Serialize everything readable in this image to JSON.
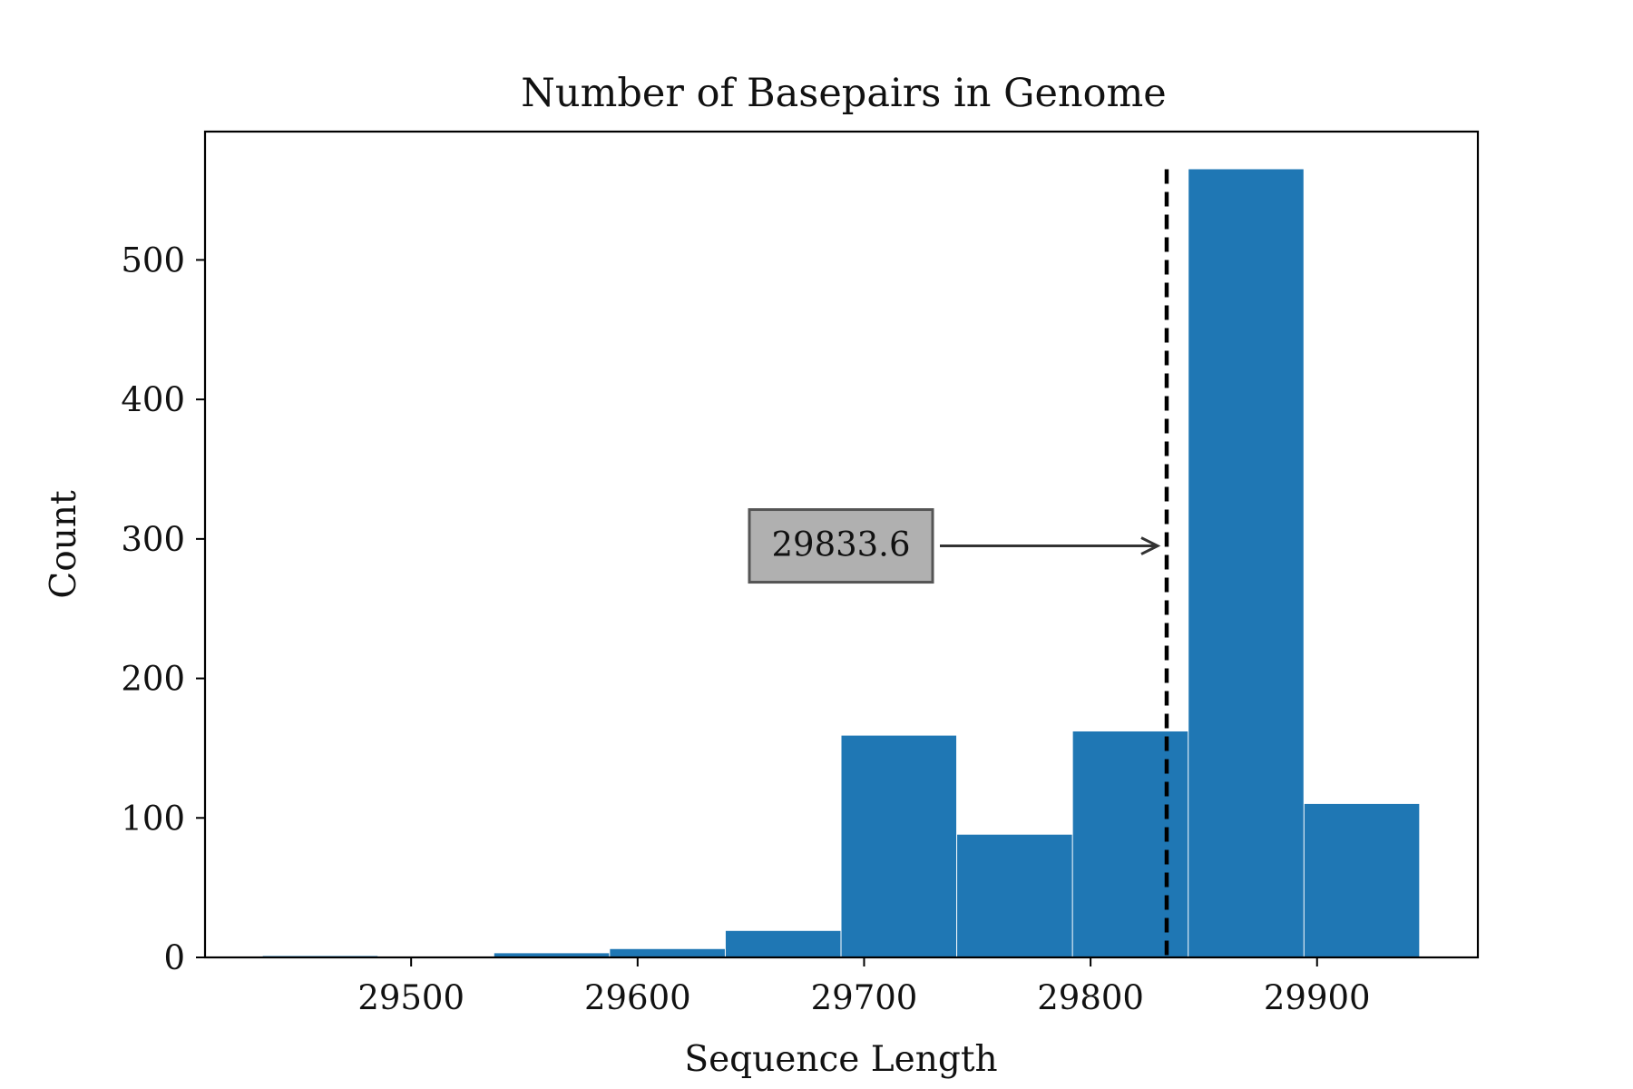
{
  "chart_data": {
    "type": "bar",
    "title": "Number of Basepairs in Genome",
    "xlabel": "Sequence Length",
    "ylabel": "Count",
    "xlim": [
      29409,
      29971
    ],
    "ylim": [
      0,
      592
    ],
    "x_ticks": [
      29500,
      29600,
      29700,
      29800,
      29900
    ],
    "y_ticks": [
      0,
      100,
      200,
      300,
      400,
      500
    ],
    "grid": false,
    "legend": "none",
    "bar_color": "#1f77b4",
    "bins": [
      {
        "x0": 29434.5,
        "x1": 29485.6,
        "count": 1
      },
      {
        "x0": 29485.6,
        "x1": 29536.7,
        "count": 0
      },
      {
        "x0": 29536.7,
        "x1": 29587.8,
        "count": 3
      },
      {
        "x0": 29587.8,
        "x1": 29638.9,
        "count": 6
      },
      {
        "x0": 29638.9,
        "x1": 29690.0,
        "count": 19
      },
      {
        "x0": 29690.0,
        "x1": 29741.1,
        "count": 159
      },
      {
        "x0": 29741.1,
        "x1": 29792.2,
        "count": 88
      },
      {
        "x0": 29792.2,
        "x1": 29843.3,
        "count": 162
      },
      {
        "x0": 29843.3,
        "x1": 29894.4,
        "count": 565
      },
      {
        "x0": 29894.4,
        "x1": 29945.5,
        "count": 110
      }
    ],
    "mean_line": {
      "x": 29833.6,
      "style": "dashed",
      "color": "#000000"
    },
    "annotation": {
      "text": "29833.6",
      "x": 29833.6,
      "y": 295,
      "box_color": "#b0b0b0"
    }
  }
}
